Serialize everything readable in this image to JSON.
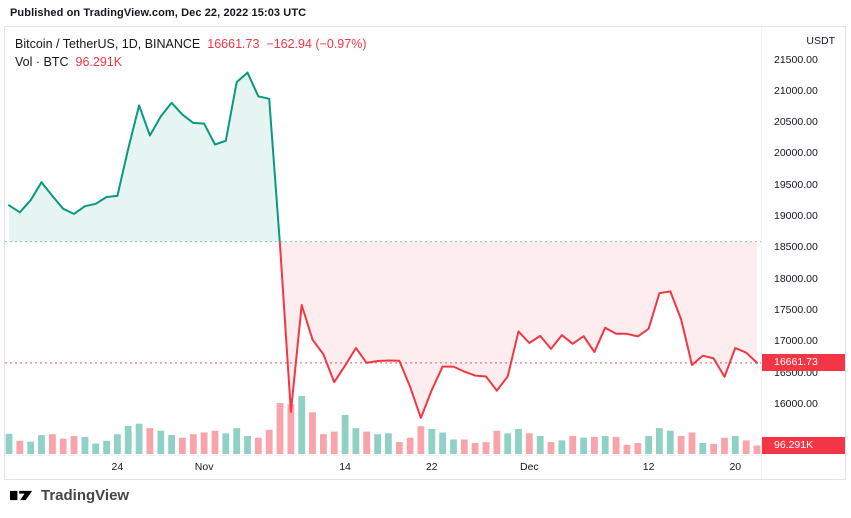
{
  "published_caption": "Published on TradingView.com, Dec 22, 2022 15:03 UTC",
  "legend": {
    "symbol_title": "Bitcoin / TetherUS, 1D, BINANCE",
    "last_price": "16661.73",
    "change_text": "−162.94 (−0.97%)",
    "volume_label": "Vol · BTC",
    "volume_value": "96.291K"
  },
  "price_scale": {
    "currency_label": "USDT",
    "tick_labels": [
      "21500.00",
      "21000.00",
      "20500.00",
      "20000.00",
      "19500.00",
      "19000.00",
      "18500.00",
      "18000.00",
      "17500.00",
      "17000.00",
      "16500.00",
      "16000.00"
    ],
    "last_price_badge": "16661.73",
    "volume_badge": "96.291K"
  },
  "time_axis_ticks": [
    {
      "label": "24",
      "index": 10
    },
    {
      "label": "Nov",
      "index": 18
    },
    {
      "label": "14",
      "index": 31
    },
    {
      "label": "22",
      "index": 39
    },
    {
      "label": "Dec",
      "index": 48
    },
    {
      "label": "12",
      "index": 59
    },
    {
      "label": "20",
      "index": 67
    }
  ],
  "footer": {
    "brand": "TradingView"
  },
  "colors": {
    "up": "#089981",
    "down": "#F23645",
    "fill_up": "rgba(8,153,129,0.10)",
    "fill_down": "rgba(242,54,69,0.09)",
    "vol_up": "rgba(8,153,129,0.45)",
    "vol_down": "rgba(242,54,69,0.45)",
    "badge_bg": "#F23645",
    "text": "#131722",
    "border": "#E0E3EB"
  },
  "chart_data": {
    "type": "area",
    "style": "baseline",
    "title": "Bitcoin / TetherUS, 1D, BINANCE",
    "interval": "1D",
    "exchange": "BINANCE",
    "baseline_value": 18600,
    "last_price": 16661.73,
    "change": -162.94,
    "change_pct": -0.97,
    "volume_last_kbtc": 96.291,
    "grid": false,
    "legend_position": "top-left",
    "y_axis": {
      "visible_min": 15190,
      "visible_max": 21900,
      "tick_step": 500,
      "unit": "USDT"
    },
    "dates": [
      "2022-10-14",
      "2022-10-15",
      "2022-10-16",
      "2022-10-17",
      "2022-10-18",
      "2022-10-19",
      "2022-10-20",
      "2022-10-21",
      "2022-10-22",
      "2022-10-23",
      "2022-10-24",
      "2022-10-25",
      "2022-10-26",
      "2022-10-27",
      "2022-10-28",
      "2022-10-29",
      "2022-10-30",
      "2022-10-31",
      "2022-11-01",
      "2022-11-02",
      "2022-11-03",
      "2022-11-04",
      "2022-11-05",
      "2022-11-06",
      "2022-11-07",
      "2022-11-08",
      "2022-11-09",
      "2022-11-10",
      "2022-11-11",
      "2022-11-12",
      "2022-11-13",
      "2022-11-14",
      "2022-11-15",
      "2022-11-16",
      "2022-11-17",
      "2022-11-18",
      "2022-11-19",
      "2022-11-20",
      "2022-11-21",
      "2022-11-22",
      "2022-11-23",
      "2022-11-24",
      "2022-11-25",
      "2022-11-26",
      "2022-11-27",
      "2022-11-28",
      "2022-11-29",
      "2022-11-30",
      "2022-12-01",
      "2022-12-02",
      "2022-12-03",
      "2022-12-04",
      "2022-12-05",
      "2022-12-06",
      "2022-12-07",
      "2022-12-08",
      "2022-12-09",
      "2022-12-10",
      "2022-12-11",
      "2022-12-12",
      "2022-12-13",
      "2022-12-14",
      "2022-12-15",
      "2022-12-16",
      "2022-12-17",
      "2022-12-18",
      "2022-12-19",
      "2022-12-20",
      "2022-12-21",
      "2022-12-22"
    ],
    "close_usdt": [
      19180,
      19068,
      19260,
      19548,
      19328,
      19123,
      19042,
      19165,
      19203,
      19312,
      19330,
      20080,
      20775,
      20295,
      20600,
      20817,
      20628,
      20495,
      20485,
      20150,
      20210,
      21148,
      21300,
      20920,
      20880,
      18545,
      15880,
      17586,
      17034,
      16799,
      16353,
      16618,
      16900,
      16662,
      16692,
      16700,
      16697,
      16280,
      15782,
      16228,
      16603,
      16603,
      16522,
      16458,
      16444,
      16217,
      16444,
      17165,
      16980,
      17092,
      16885,
      17105,
      16966,
      17088,
      16836,
      17224,
      17128,
      17127,
      17085,
      17206,
      17775,
      17803,
      17356,
      16630,
      16776,
      16734,
      16439,
      16900,
      16824,
      16661.73
    ],
    "volume_kbtc": [
      230,
      150,
      140,
      215,
      225,
      175,
      205,
      195,
      120,
      150,
      225,
      320,
      345,
      295,
      265,
      215,
      185,
      225,
      245,
      265,
      235,
      295,
      205,
      185,
      275,
      580,
      565,
      660,
      475,
      225,
      255,
      445,
      295,
      255,
      225,
      235,
      135,
      185,
      315,
      285,
      245,
      165,
      165,
      125,
      135,
      265,
      235,
      285,
      235,
      205,
      135,
      155,
      205,
      185,
      195,
      205,
      195,
      105,
      125,
      205,
      295,
      265,
      205,
      245,
      125,
      115,
      185,
      205,
      155,
      96.291
    ]
  }
}
